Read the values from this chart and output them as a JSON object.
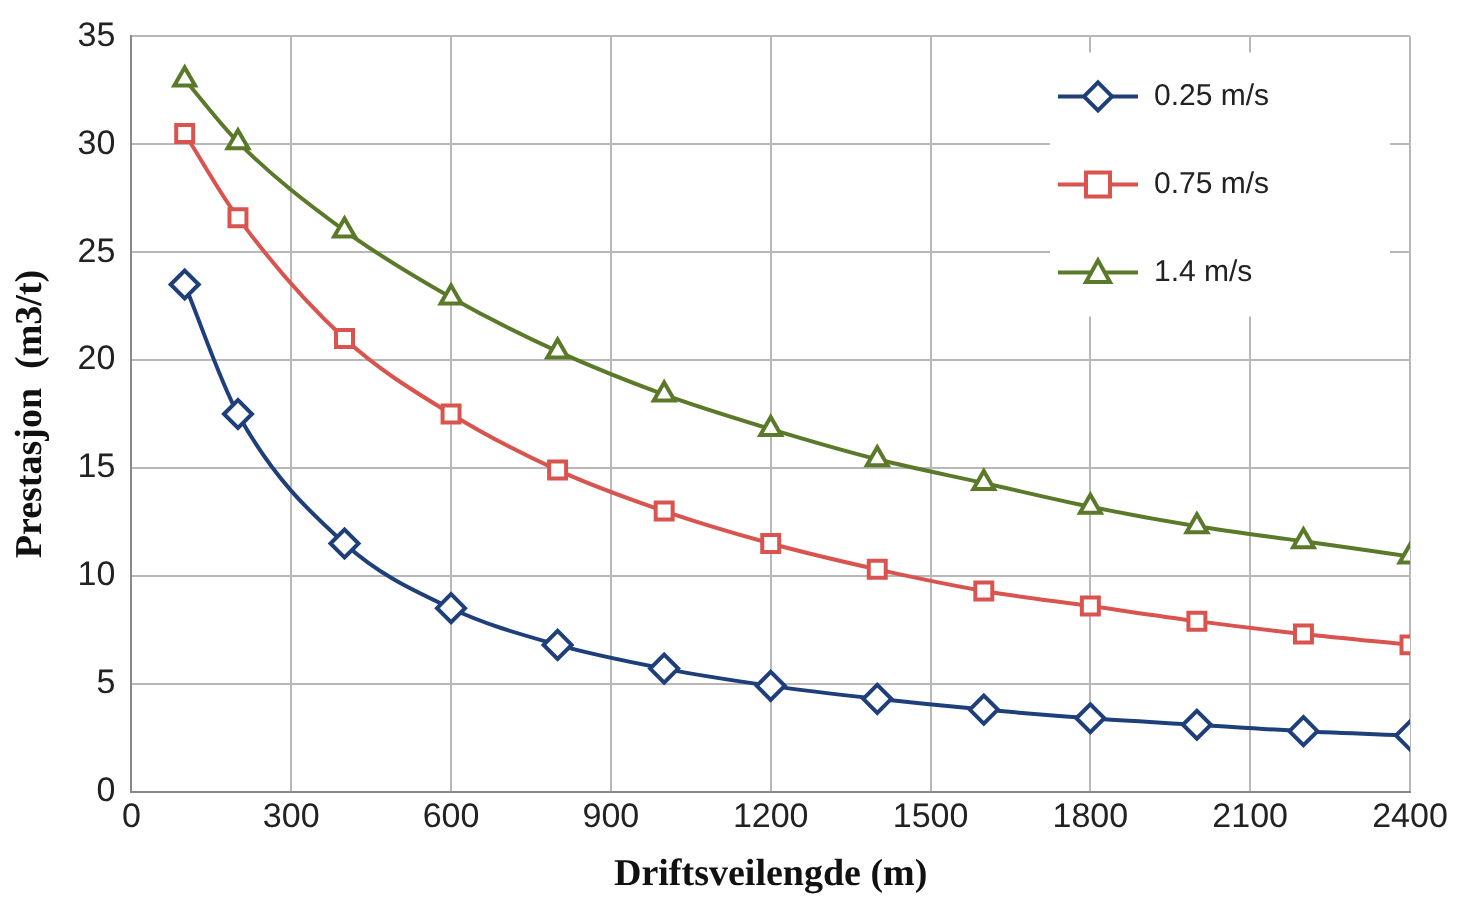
{
  "chart_data": {
    "type": "line",
    "xlabel": "Driftsveilengde (m)",
    "ylabel": "Prestasjon  (m3/t)",
    "x": [
      100,
      200,
      400,
      600,
      800,
      1000,
      1200,
      1400,
      1600,
      1800,
      2000,
      2200,
      2400
    ],
    "series": [
      {
        "name": "0.25 m/s",
        "color": "#1f3f7a",
        "marker": "diamond",
        "values": [
          23.5,
          17.5,
          11.5,
          8.5,
          6.8,
          5.7,
          4.9,
          4.3,
          3.8,
          3.4,
          3.1,
          2.8,
          2.6
        ]
      },
      {
        "name": "0.75 m/s",
        "color": "#d9534f",
        "marker": "square",
        "values": [
          30.5,
          26.6,
          21,
          17.5,
          14.9,
          13,
          11.5,
          10.3,
          9.3,
          8.6,
          7.9,
          7.3,
          6.8
        ]
      },
      {
        "name": "1.4 m/s",
        "color": "#5a7a2a",
        "marker": "triangle",
        "values": [
          33,
          30.1,
          26,
          22.9,
          20.4,
          18.4,
          16.8,
          15.4,
          14.3,
          13.2,
          12.3,
          11.6,
          10.9
        ]
      }
    ],
    "xlim": [
      0,
      2400
    ],
    "xticks": [
      0,
      300,
      600,
      900,
      1200,
      1500,
      1800,
      2100,
      2400
    ],
    "ylim": [
      0,
      35
    ],
    "yticks": [
      0,
      5,
      10,
      15,
      20,
      25,
      30,
      35
    ],
    "grid": true,
    "legend": "top right",
    "line_style": "solid"
  }
}
